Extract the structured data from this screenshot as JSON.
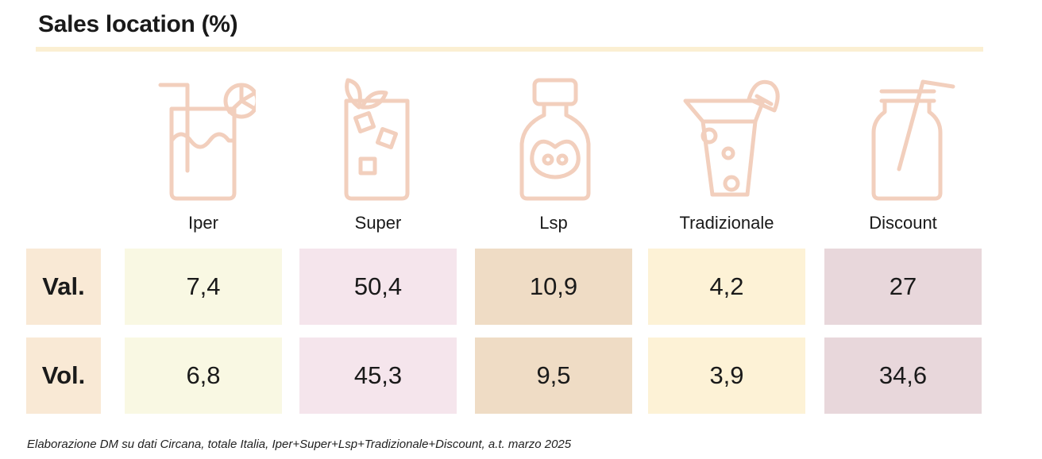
{
  "chart_data": {
    "type": "table",
    "title": "Sales location (%)",
    "categories": [
      "Iper",
      "Super",
      "Lsp",
      "Tradizionale",
      "Discount"
    ],
    "series": [
      {
        "name": "Val.",
        "values": [
          7.4,
          50.4,
          10.9,
          4.2,
          27
        ],
        "labels": [
          "7,4",
          "50,4",
          "10,9",
          "4,2",
          "27"
        ]
      },
      {
        "name": "Vol.",
        "values": [
          6.8,
          45.3,
          9.5,
          3.9,
          34.6
        ],
        "labels": [
          "6,8",
          "45,3",
          "9,5",
          "3,9",
          "34,6"
        ]
      }
    ],
    "source": "Elaborazione DM su dati Circana, totale Italia, Iper+Super+Lsp+Tradizionale+Discount, a.t. marzo 2025"
  },
  "icons": [
    "lemonade-glass-icon",
    "iced-drink-glass-icon",
    "bottle-icon",
    "cocktail-glass-icon",
    "jar-with-straw-icon"
  ],
  "colors": {
    "title_rule": "#fbefd2",
    "icon_stroke": "#f2cfbd",
    "row_label_bg": "#f9e9d5",
    "column_bg": [
      "#f9f8e3",
      "#f5e5ec",
      "#efdcc5",
      "#fdf2d6",
      "#e8d7db"
    ]
  }
}
